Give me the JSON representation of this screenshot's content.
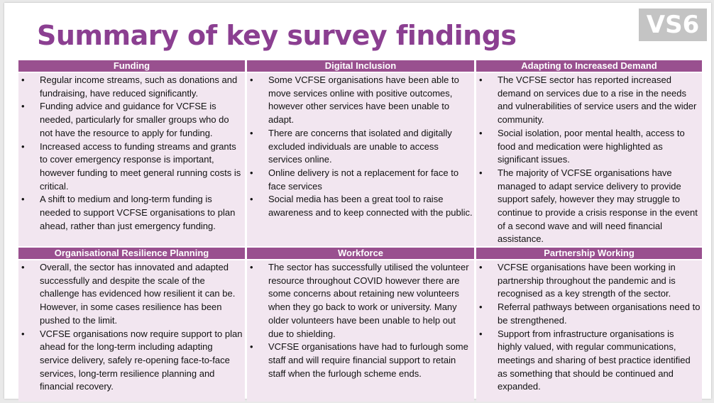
{
  "title": "Summary of key survey findings",
  "badge": "VS6",
  "colors": {
    "title": "#8b3f91",
    "header_bg": "#99508f",
    "cell_bg": "#f2e6f0",
    "badge_bg": "#c4c4c4"
  },
  "sections": [
    {
      "heading": "Funding",
      "bullets": [
        "Regular income streams, such as donations and fundraising, have reduced significantly.",
        "Funding advice and guidance for VCFSE is needed, particularly for smaller groups who do not have the resource to apply for funding.",
        "Increased access to funding streams and grants to cover emergency response is important, however funding to meet general running costs is critical.",
        "A shift to medium and long-term funding is needed to support VCFSE organisations to plan ahead, rather than just emergency funding."
      ]
    },
    {
      "heading": "Digital Inclusion",
      "bullets": [
        "Some VCFSE organisations have been able to move services online with positive outcomes, however other services have been unable to adapt.",
        "There are concerns that isolated and digitally excluded individuals are unable to access services online.",
        "Online delivery is not a replacement for face to face services",
        "Social media has been a great tool to raise awareness and to keep connected with the public."
      ]
    },
    {
      "heading": "Adapting to Increased Demand",
      "bullets": [
        "The VCFSE sector has reported increased demand on services due to a rise in the needs and vulnerabilities of service users and the wider community.",
        "Social isolation, poor mental health, access to food and medication were highlighted as significant issues.",
        "The majority of VCFSE organisations have managed to adapt service delivery to provide support safely, however they may struggle to continue to provide a crisis response in the event of a second wave and will need financial assistance."
      ]
    },
    {
      "heading": "Organisational Resilience Planning",
      "bullets": [
        "Overall, the sector has innovated and adapted successfully and despite the scale of the challenge has evidenced how resilient it can be. However, in some cases resilience has been pushed to the limit.",
        "VCFSE organisations now require support to plan ahead for the long-term including adapting service delivery, safely re-opening face-to-face services, long-term resilience planning and financial recovery."
      ]
    },
    {
      "heading": "Workforce",
      "bullets": [
        "The sector has successfully utilised the volunteer resource throughout COVID however there are some concerns about retaining new volunteers when they go back to work or university. Many older volunteers have been unable to help out due to shielding.",
        "VCFSE organisations have had to furlough some staff and will require financial support to retain staff when the furlough scheme ends."
      ]
    },
    {
      "heading": "Partnership Working",
      "bullets": [
        "VCFSE organisations have been working in partnership throughout the pandemic and is recognised as a key strength of the sector.",
        "Referral pathways between organisations need to be strengthened.",
        "Support from infrastructure organisations is highly valued, with regular communications, meetings and sharing of best practice identified as something that should be continued and expanded."
      ]
    }
  ]
}
